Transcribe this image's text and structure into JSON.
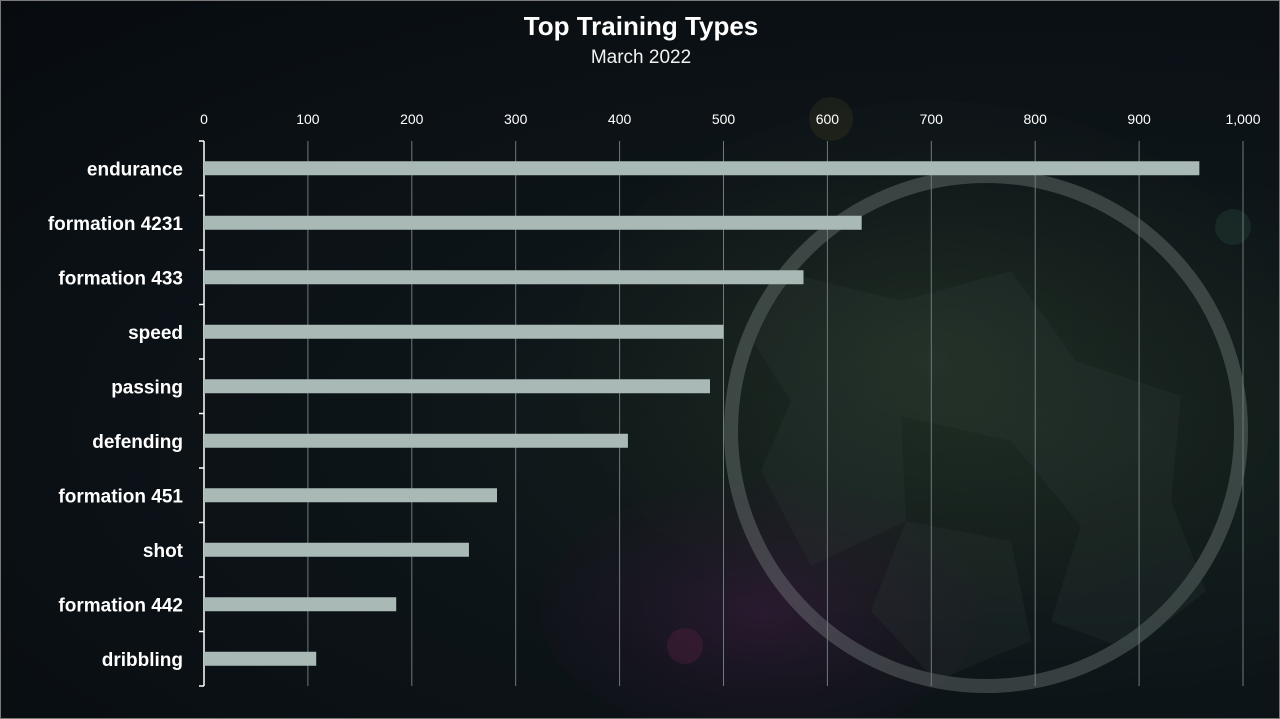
{
  "colors": {
    "background": "#0a0f14",
    "bar": "#a9bab6",
    "gridline": "#6f7a7c",
    "text": "#ffffff"
  },
  "chart_data": {
    "type": "bar",
    "orientation": "horizontal",
    "title": "Top Training Types",
    "subtitle": "March 2022",
    "categories": [
      "endurance",
      "formation 4231",
      "formation 433",
      "speed",
      "passing",
      "defending",
      "formation 451",
      "shot",
      "formation 442",
      "dribbling"
    ],
    "values": [
      958,
      633,
      577,
      500,
      487,
      408,
      282,
      255,
      185,
      108
    ],
    "xlim": [
      0,
      1000
    ],
    "x_ticks": [
      "0",
      "100",
      "200",
      "300",
      "400",
      "500",
      "600",
      "700",
      "800",
      "900",
      "1,000"
    ],
    "x_axis_position": "top",
    "grid": true,
    "legend": "none"
  }
}
